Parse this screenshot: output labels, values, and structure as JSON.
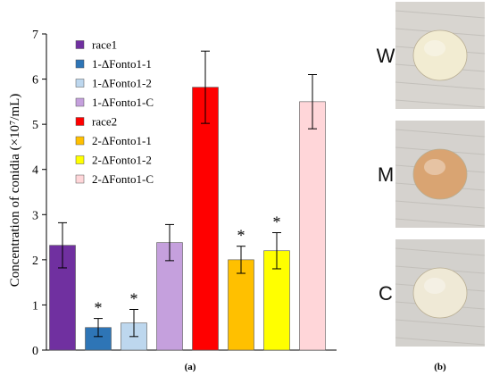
{
  "chart_data": {
    "type": "bar",
    "ylabel": "Concentration of conidia (×10⁷/mL)",
    "ylim": [
      0,
      7
    ],
    "yticks": [
      0,
      1,
      2,
      3,
      4,
      5,
      6,
      7
    ],
    "grid": false,
    "legend_position": "top-left",
    "panel_label": "(a)",
    "series": [
      {
        "name": "race1",
        "value": 2.32,
        "error": 0.5,
        "color": "#7030a0",
        "significant": false
      },
      {
        "name": "1-ΔFonto1-1",
        "value": 0.5,
        "error": 0.2,
        "color": "#2e75b6",
        "significant": true
      },
      {
        "name": "1-ΔFonto1-2",
        "value": 0.6,
        "error": 0.3,
        "color": "#bdd7ee",
        "significant": true
      },
      {
        "name": "1-ΔFonto1-C",
        "value": 2.38,
        "error": 0.4,
        "color": "#c5a0dd",
        "significant": false
      },
      {
        "name": "race2",
        "value": 5.82,
        "error": 0.8,
        "color": "#ff0000",
        "significant": false
      },
      {
        "name": "2-ΔFonto1-1",
        "value": 2.0,
        "error": 0.3,
        "color": "#ffc000",
        "significant": true
      },
      {
        "name": "2-ΔFonto1-2",
        "value": 2.2,
        "error": 0.4,
        "color": "#ffff00",
        "significant": true
      },
      {
        "name": "2-ΔFonto1-C",
        "value": 5.5,
        "error": 0.6,
        "color": "#ffd6d9",
        "significant": false
      }
    ],
    "significance_marker": "*"
  },
  "photos": {
    "panel_label": "(b)",
    "items": [
      {
        "letter": "W",
        "colony_color": "#f2ecd2",
        "bg": "#d8d5d0"
      },
      {
        "letter": "M",
        "colony_color": "#d9a472",
        "bg": "#d5d2ce"
      },
      {
        "letter": "C",
        "colony_color": "#efe9d6",
        "bg": "#d3d1cd"
      }
    ]
  }
}
